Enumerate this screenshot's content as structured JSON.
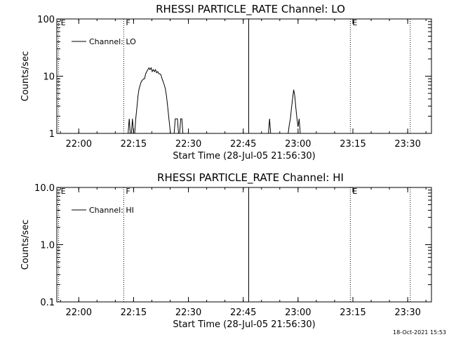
{
  "timestamp": "18-Oct-2021 15:53",
  "chart_data": [
    {
      "type": "line",
      "title": "RHESSI PARTICLE_RATE Channel: LO",
      "xlabel": "Start Time (28-Jul-05 21:56:30)",
      "ylabel": "Counts/sec",
      "y_scale": "log",
      "ylim": [
        1,
        100
      ],
      "y_ticks": [
        {
          "v": 1,
          "label": "1"
        },
        {
          "v": 10,
          "label": "10"
        },
        {
          "v": 100,
          "label": "100"
        }
      ],
      "x_range_min": [
        -2.5,
        100
      ],
      "x_ticks": [
        {
          "v": 3.5,
          "label": "22:00"
        },
        {
          "v": 18.5,
          "label": "22:15"
        },
        {
          "v": 33.5,
          "label": "22:30"
        },
        {
          "v": 48.5,
          "label": "22:45"
        },
        {
          "v": 63.5,
          "label": "23:00"
        },
        {
          "v": 78.5,
          "label": "23:15"
        },
        {
          "v": 93.5,
          "label": "23:30"
        }
      ],
      "markers": [
        {
          "x": -2.0,
          "label": "E",
          "style": "dotted"
        },
        {
          "x": 15.8,
          "label": "F",
          "style": "dotted"
        },
        {
          "x": 50.0,
          "label": "",
          "style": "solid"
        },
        {
          "x": 77.8,
          "label": "E",
          "style": "dotted"
        },
        {
          "x": 94.2,
          "label": "",
          "style": "dotted"
        }
      ],
      "legend": "top-left",
      "grid": false,
      "series": [
        {
          "name": "Channel: LO",
          "segments": [
            [
              [
                17.0,
                1
              ],
              [
                17.3,
                1.8
              ],
              [
                17.6,
                1
              ],
              [
                17.9,
                1
              ],
              [
                18.2,
                1.8
              ],
              [
                18.5,
                1
              ]
            ],
            [
              [
                18.8,
                1
              ],
              [
                19.1,
                1.8
              ],
              [
                19.4,
                2.8
              ],
              [
                19.7,
                4.5
              ],
              [
                20.0,
                6
              ],
              [
                20.3,
                7
              ],
              [
                20.6,
                8
              ],
              [
                20.9,
                8.5
              ],
              [
                21.2,
                9
              ],
              [
                21.5,
                9
              ],
              [
                21.8,
                11
              ],
              [
                22.1,
                12
              ],
              [
                22.4,
                13
              ],
              [
                22.7,
                14
              ],
              [
                23.0,
                13
              ],
              [
                23.3,
                14
              ],
              [
                23.6,
                12
              ],
              [
                23.9,
                13
              ],
              [
                24.2,
                12
              ],
              [
                24.5,
                13
              ],
              [
                24.8,
                11.5
              ],
              [
                25.1,
                12
              ],
              [
                25.4,
                11
              ],
              [
                25.7,
                11
              ],
              [
                26.0,
                10.5
              ],
              [
                26.3,
                9
              ],
              [
                26.6,
                8
              ],
              [
                26.9,
                7
              ],
              [
                27.2,
                6
              ],
              [
                27.5,
                4.5
              ],
              [
                27.8,
                3
              ],
              [
                28.1,
                2
              ],
              [
                28.4,
                1.3
              ],
              [
                28.6,
                1
              ]
            ],
            [
              [
                29.6,
                1
              ],
              [
                29.9,
                1.8
              ],
              [
                30.2,
                1.8
              ],
              [
                30.5,
                1.8
              ],
              [
                30.8,
                1
              ],
              [
                31.1,
                1
              ],
              [
                31.4,
                1.8
              ],
              [
                31.7,
                1.8
              ],
              [
                32.0,
                1
              ]
            ],
            [
              [
                55.4,
                1
              ],
              [
                55.7,
                1.8
              ],
              [
                56.0,
                1
              ]
            ],
            [
              [
                60.8,
                1
              ],
              [
                61.1,
                1.4
              ],
              [
                61.4,
                1.8
              ],
              [
                61.7,
                2.8
              ],
              [
                62.0,
                4
              ],
              [
                62.3,
                5.8
              ],
              [
                62.6,
                4.5
              ],
              [
                62.9,
                2.8
              ],
              [
                63.2,
                1.8
              ],
              [
                63.5,
                1.3
              ],
              [
                63.8,
                1.8
              ],
              [
                64.1,
                1
              ]
            ]
          ]
        }
      ]
    },
    {
      "type": "line",
      "title": "RHESSI PARTICLE_RATE Channel: HI",
      "xlabel": "Start Time (28-Jul-05 21:56:30)",
      "ylabel": "Counts/sec",
      "y_scale": "log",
      "ylim": [
        0.1,
        10
      ],
      "y_ticks": [
        {
          "v": 0.1,
          "label": "0.1"
        },
        {
          "v": 1,
          "label": "1.0"
        },
        {
          "v": 10,
          "label": "10.0"
        }
      ],
      "x_range_min": [
        -2.5,
        100
      ],
      "x_ticks": [
        {
          "v": 3.5,
          "label": "22:00"
        },
        {
          "v": 18.5,
          "label": "22:15"
        },
        {
          "v": 33.5,
          "label": "22:30"
        },
        {
          "v": 48.5,
          "label": "22:45"
        },
        {
          "v": 63.5,
          "label": "23:00"
        },
        {
          "v": 78.5,
          "label": "23:15"
        },
        {
          "v": 93.5,
          "label": "23:30"
        }
      ],
      "markers": [
        {
          "x": -2.0,
          "label": "E",
          "style": "dotted"
        },
        {
          "x": 15.8,
          "label": "F",
          "style": "dotted"
        },
        {
          "x": 50.0,
          "label": "",
          "style": "solid"
        },
        {
          "x": 77.8,
          "label": "E",
          "style": "dotted"
        },
        {
          "x": 94.2,
          "label": "",
          "style": "dotted"
        }
      ],
      "legend": "top-left",
      "grid": false,
      "series": [
        {
          "name": "Channel: HI",
          "segments": []
        }
      ]
    }
  ]
}
